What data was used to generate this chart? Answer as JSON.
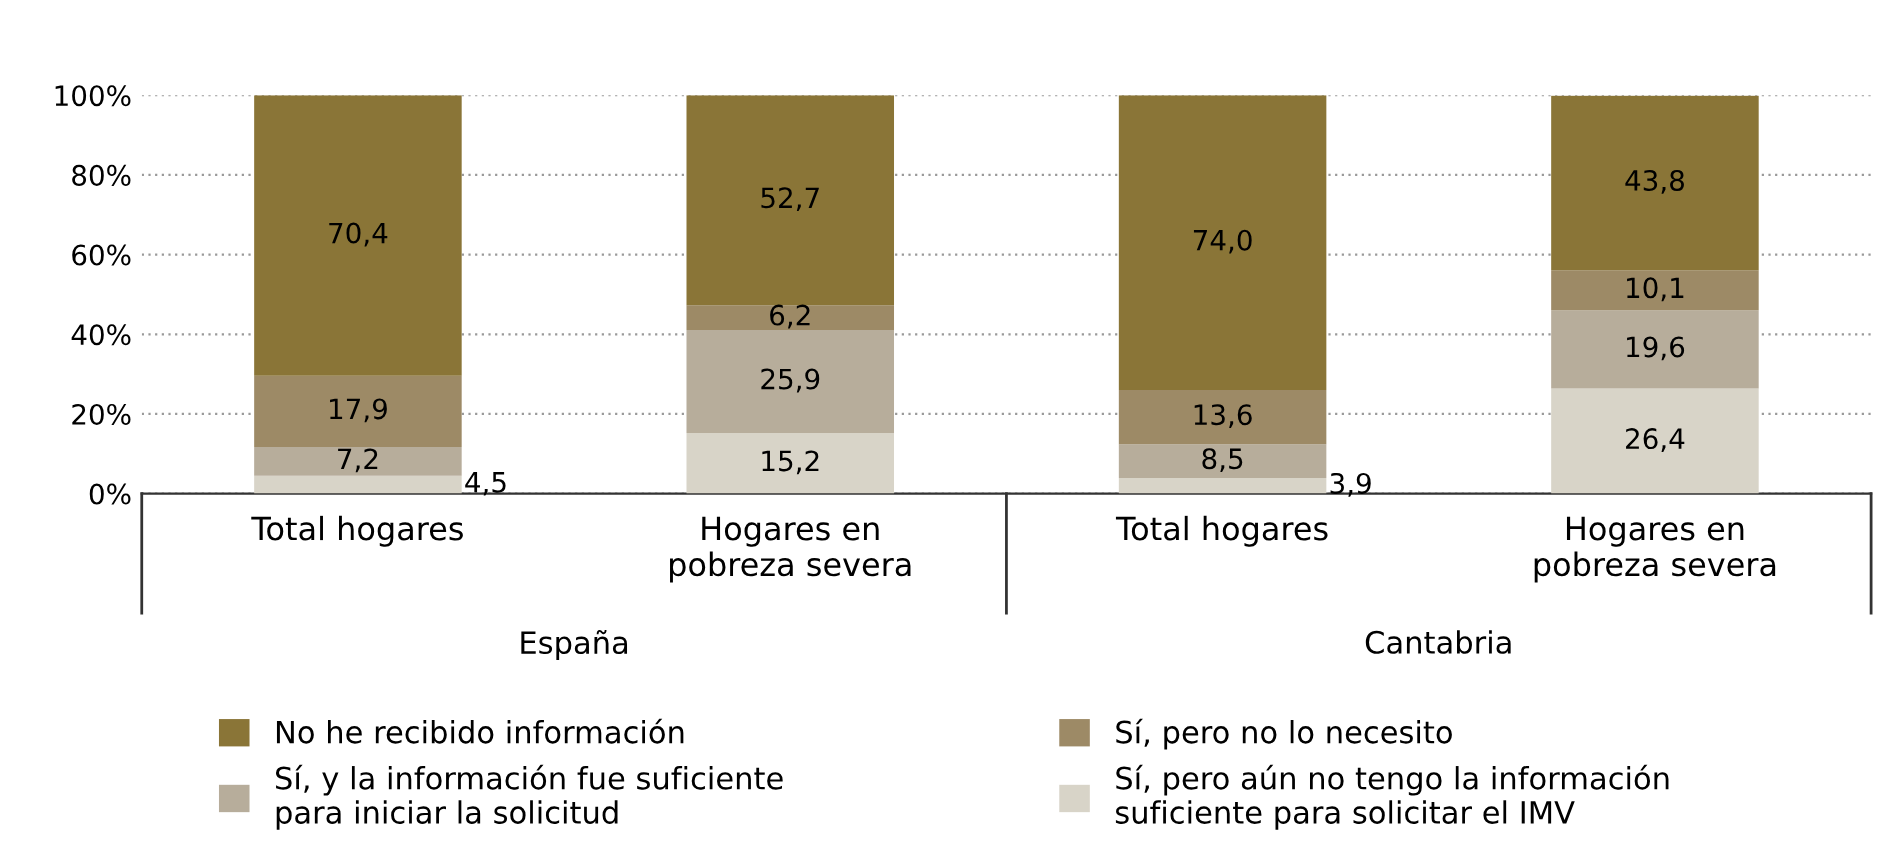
{
  "chart_data": {
    "type": "bar",
    "stacked": true,
    "categories": [
      "Total hogares",
      "Hogares en\npobreza severa",
      "Total hogares",
      "Hogares en\npobreza severa"
    ],
    "annotations": [
      "España",
      "Cantabria"
    ],
    "series": [
      {
        "name": "Sí, pero aún no tengo la información\nsuficiente para solicitar el IMV",
        "color": "#d8d4c8",
        "values": [
          4.5,
          15.2,
          3.9,
          26.4
        ],
        "value_labels": [
          "4,5",
          "15,2",
          "3,9",
          "26,4"
        ]
      },
      {
        "name": "Sí, y la información fue suficiente\npara iniciar la solicitud",
        "color": "#b7ad9b",
        "values": [
          7.2,
          25.9,
          8.5,
          19.6
        ],
        "value_labels": [
          "7,2",
          "25,9",
          "8,5",
          "19,6"
        ]
      },
      {
        "name": "Sí, pero no lo necesito",
        "color": "#9d8a66",
        "values": [
          17.9,
          6.2,
          13.6,
          10.1
        ],
        "value_labels": [
          "17,9",
          "6,2",
          "13,6",
          "10,1"
        ]
      },
      {
        "name": "No he recibido información",
        "color": "#8a7537",
        "values": [
          70.4,
          52.7,
          74.0,
          43.8
        ],
        "value_labels": [
          "70,4",
          "52,7",
          "74,0",
          "43,8"
        ]
      }
    ],
    "ylim": [
      0,
      100
    ],
    "yticks": [
      {
        "value": 0,
        "label": "0%"
      },
      {
        "value": 20,
        "label": "20%"
      },
      {
        "value": 40,
        "label": "40%"
      },
      {
        "value": 60,
        "label": "60%"
      },
      {
        "value": 80,
        "label": "80%"
      },
      {
        "value": 100,
        "label": "100%"
      }
    ],
    "grid": "y",
    "legend": "bottom"
  }
}
